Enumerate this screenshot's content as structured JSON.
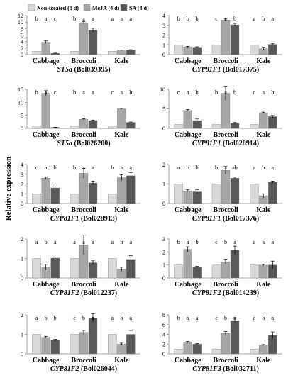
{
  "figure": {
    "ylabel": "Relative expression",
    "legend": [
      "Non-treated (0 d)",
      "MeJA (4 d)",
      "SA (4 d)"
    ]
  },
  "colors": {
    "non_treated": "#d9d9d9",
    "meja": "#a6a6a6",
    "sa": "#595959",
    "axis": "#888888"
  },
  "chart_data": [
    {
      "type": "bar",
      "gene": "ST5a",
      "id": "(Bol039395)",
      "categories": [
        "Cabbage",
        "Broccoli",
        "Kale"
      ],
      "ylim": [
        0,
        12
      ],
      "yticks": [
        0,
        2,
        4,
        6,
        8,
        10,
        12
      ],
      "series": [
        {
          "name": "Non-treated (0 d)",
          "values": [
            1,
            1,
            1
          ],
          "err": [
            0,
            0,
            0
          ]
        },
        {
          "name": "MeJA (4 d)",
          "values": [
            3.8,
            9.8,
            1.35
          ],
          "err": [
            0.4,
            0.3,
            0.1
          ]
        },
        {
          "name": "SA (4 d)",
          "values": [
            0.4,
            7.5,
            1.4
          ],
          "err": [
            0.05,
            0.6,
            0.1
          ]
        }
      ],
      "letters": [
        [
          "b",
          "a",
          "c"
        ],
        [
          "b",
          "a",
          "a"
        ],
        [
          "a",
          "a",
          "a"
        ]
      ]
    },
    {
      "type": "bar",
      "gene": "CYP81F1",
      "id": "(Bol017375)",
      "categories": [
        "Cabbage",
        "Broccoli",
        "Kale"
      ],
      "ylim": [
        0,
        4
      ],
      "yticks": [
        0,
        1,
        2,
        3,
        4
      ],
      "series": [
        {
          "name": "Non-treated (0 d)",
          "values": [
            1,
            1,
            1
          ],
          "err": [
            0,
            0,
            0
          ]
        },
        {
          "name": "MeJA (4 d)",
          "values": [
            0.8,
            3.55,
            0.6
          ],
          "err": [
            0.05,
            0.15,
            0.15
          ]
        },
        {
          "name": "SA (4 d)",
          "values": [
            0.75,
            3.05,
            1.05
          ],
          "err": [
            0.05,
            0.15,
            0.1
          ]
        }
      ],
      "letters": [
        [
          "b",
          "b",
          "b"
        ],
        [
          "c",
          "a",
          "b"
        ],
        [
          "a",
          "b",
          "a"
        ]
      ]
    },
    {
      "type": "bar",
      "gene": "ST5a",
      "id": "(Bol026200)",
      "categories": [
        "Cabbage",
        "Broccoli",
        "Kale"
      ],
      "ylim": [
        0,
        15
      ],
      "yticks": [
        0,
        5,
        10,
        15
      ],
      "series": [
        {
          "name": "Non-treated (0 d)",
          "values": [
            1,
            1,
            1
          ],
          "err": [
            0,
            0,
            0
          ]
        },
        {
          "name": "MeJA (4 d)",
          "values": [
            13.5,
            3.5,
            7.5
          ],
          "err": [
            1.0,
            0.2,
            0.2
          ]
        },
        {
          "name": "SA (4 d)",
          "values": [
            0.4,
            3.0,
            2.3
          ],
          "err": [
            0.05,
            0.2,
            0.15
          ]
        }
      ],
      "letters": [
        [
          "b",
          "a",
          "c"
        ],
        [
          "b",
          "a",
          "a"
        ],
        [
          "c",
          "a",
          "b"
        ]
      ]
    },
    {
      "type": "bar",
      "gene": "CYP81F1",
      "id": "(Bol028914)",
      "categories": [
        "Cabbage",
        "Broccoli",
        "Kale"
      ],
      "ylim": [
        0,
        10
      ],
      "yticks": [
        0,
        5,
        10
      ],
      "series": [
        {
          "name": "Non-treated (0 d)",
          "values": [
            1,
            1,
            1
          ],
          "err": [
            0,
            0,
            0
          ]
        },
        {
          "name": "MeJA (4 d)",
          "values": [
            4.6,
            9.0,
            4.0
          ],
          "err": [
            0.2,
            1.8,
            0.15
          ]
        },
        {
          "name": "SA (4 d)",
          "values": [
            2.0,
            1.3,
            3.0
          ],
          "err": [
            0.4,
            0.2,
            0.3
          ]
        }
      ],
      "letters": [
        [
          "c",
          "a",
          "b"
        ],
        [
          "b",
          "a",
          "b"
        ],
        [
          "c",
          "a",
          "b"
        ]
      ]
    },
    {
      "type": "bar",
      "gene": "CYP81F1",
      "id": "(Bol028913)",
      "categories": [
        "Cabbage",
        "Broccoli",
        "Kale"
      ],
      "ylim": [
        0,
        4
      ],
      "yticks": [
        0,
        1,
        2,
        3,
        4
      ],
      "series": [
        {
          "name": "Non-treated (0 d)",
          "values": [
            1,
            1,
            1
          ],
          "err": [
            0,
            0,
            0
          ]
        },
        {
          "name": "MeJA (4 d)",
          "values": [
            2.6,
            3.1,
            2.65
          ],
          "err": [
            0.1,
            0.5,
            0.3
          ]
        },
        {
          "name": "SA (4 d)",
          "values": [
            1.6,
            2.1,
            2.85
          ],
          "err": [
            0.2,
            0.2,
            0.3
          ]
        }
      ],
      "letters": [
        [
          "c",
          "a",
          "b"
        ],
        [
          "b",
          "a",
          "a"
        ],
        [
          "b",
          "a",
          "a"
        ]
      ]
    },
    {
      "type": "bar",
      "gene": "CYP81F1",
      "id": "(Bol017376)",
      "categories": [
        "Cabbage",
        "Broccoli",
        "Kale"
      ],
      "ylim": [
        0,
        2
      ],
      "yticks": [
        0,
        1,
        2
      ],
      "series": [
        {
          "name": "Non-treated (0 d)",
          "values": [
            1,
            1,
            1
          ],
          "err": [
            0,
            0,
            0
          ]
        },
        {
          "name": "MeJA (4 d)",
          "values": [
            0.65,
            1.7,
            0.4
          ],
          "err": [
            0.05,
            0.2,
            0.1
          ]
        },
        {
          "name": "SA (4 d)",
          "values": [
            0.6,
            1.3,
            1.1
          ],
          "err": [
            0.1,
            0.05,
            0.05
          ]
        }
      ],
      "letters": [
        [
          "a",
          "b",
          "b"
        ],
        [
          "b",
          "a",
          "ab"
        ],
        [
          "a",
          "b",
          "a"
        ]
      ]
    },
    {
      "type": "bar",
      "gene": "CYP81F2",
      "id": "(Bol012237)",
      "categories": [
        "Cabbage",
        "Broccoli",
        "Kale"
      ],
      "ylim": [
        0,
        2
      ],
      "yticks": [
        0,
        1,
        2
      ],
      "series": [
        {
          "name": "Non-treated (0 d)",
          "values": [
            1,
            1,
            1
          ],
          "err": [
            0,
            0,
            0
          ]
        },
        {
          "name": "MeJA (4 d)",
          "values": [
            0.55,
            1.7,
            0.45
          ],
          "err": [
            0.15,
            0.5,
            0.1
          ]
        },
        {
          "name": "SA (4 d)",
          "values": [
            1.02,
            0.78,
            0.95
          ],
          "err": [
            0.05,
            0.1,
            0.2
          ]
        }
      ],
      "letters": [
        [
          "a",
          "b",
          "a"
        ],
        [
          "a",
          "a",
          "a"
        ],
        [
          "a",
          "b",
          "a"
        ]
      ]
    },
    {
      "type": "bar",
      "gene": "CYP81F2",
      "id": "(Bol014239)",
      "categories": [
        "Cabbage",
        "Broccoli",
        "Kale"
      ],
      "ylim": [
        0,
        3
      ],
      "yticks": [
        0,
        1,
        2,
        3
      ],
      "series": [
        {
          "name": "Non-treated (0 d)",
          "values": [
            1,
            1,
            1
          ],
          "err": [
            0,
            0,
            0
          ]
        },
        {
          "name": "MeJA (4 d)",
          "values": [
            2.2,
            1.25,
            1.0
          ],
          "err": [
            0.2,
            0.2,
            0.05
          ]
        },
        {
          "name": "SA (4 d)",
          "values": [
            0.85,
            2.15,
            1.0
          ],
          "err": [
            0.05,
            0.3,
            0.3
          ]
        }
      ],
      "letters": [
        [
          "b",
          "a",
          "b"
        ],
        [
          "c",
          "b",
          "a"
        ],
        [
          "a",
          "a",
          "a"
        ]
      ]
    },
    {
      "type": "bar",
      "gene": "CYP81F2",
      "id": "(Bol026044)",
      "categories": [
        "Cabbage",
        "Broccoli",
        "Kale"
      ],
      "ylim": [
        0,
        2
      ],
      "yticks": [
        0,
        1,
        2
      ],
      "series": [
        {
          "name": "Non-treated (0 d)",
          "values": [
            1,
            1,
            1
          ],
          "err": [
            0,
            0,
            0
          ]
        },
        {
          "name": "MeJA (4 d)",
          "values": [
            0.85,
            1.1,
            0.5
          ],
          "err": [
            0.05,
            0.1,
            0.05
          ]
        },
        {
          "name": "SA (4 d)",
          "values": [
            0.7,
            1.85,
            1.0
          ],
          "err": [
            0.05,
            0.2,
            0.2
          ]
        }
      ],
      "letters": [
        [
          "a",
          "b",
          "b"
        ],
        [
          "c",
          "b",
          "a"
        ],
        [
          "a",
          "b",
          "a"
        ]
      ]
    },
    {
      "type": "bar",
      "gene": "CYP81F3",
      "id": "(Bol032711)",
      "categories": [
        "Cabbage",
        "Broccoli",
        "Kale"
      ],
      "ylim": [
        0,
        8
      ],
      "yticks": [
        0,
        2,
        4,
        6,
        8
      ],
      "series": [
        {
          "name": "Non-treated (0 d)",
          "values": [
            1,
            1,
            1
          ],
          "err": [
            0,
            0,
            0
          ]
        },
        {
          "name": "MeJA (4 d)",
          "values": [
            2.4,
            4.2,
            1.8
          ],
          "err": [
            0.15,
            0.4,
            0.1
          ]
        },
        {
          "name": "SA (4 d)",
          "values": [
            2.0,
            6.8,
            3.8
          ],
          "err": [
            0.1,
            0.6,
            0.7
          ]
        }
      ],
      "letters": [
        [
          "b",
          "a",
          "a"
        ],
        [
          "c",
          "b",
          "a"
        ],
        [
          "c",
          "b",
          "a"
        ]
      ]
    }
  ]
}
